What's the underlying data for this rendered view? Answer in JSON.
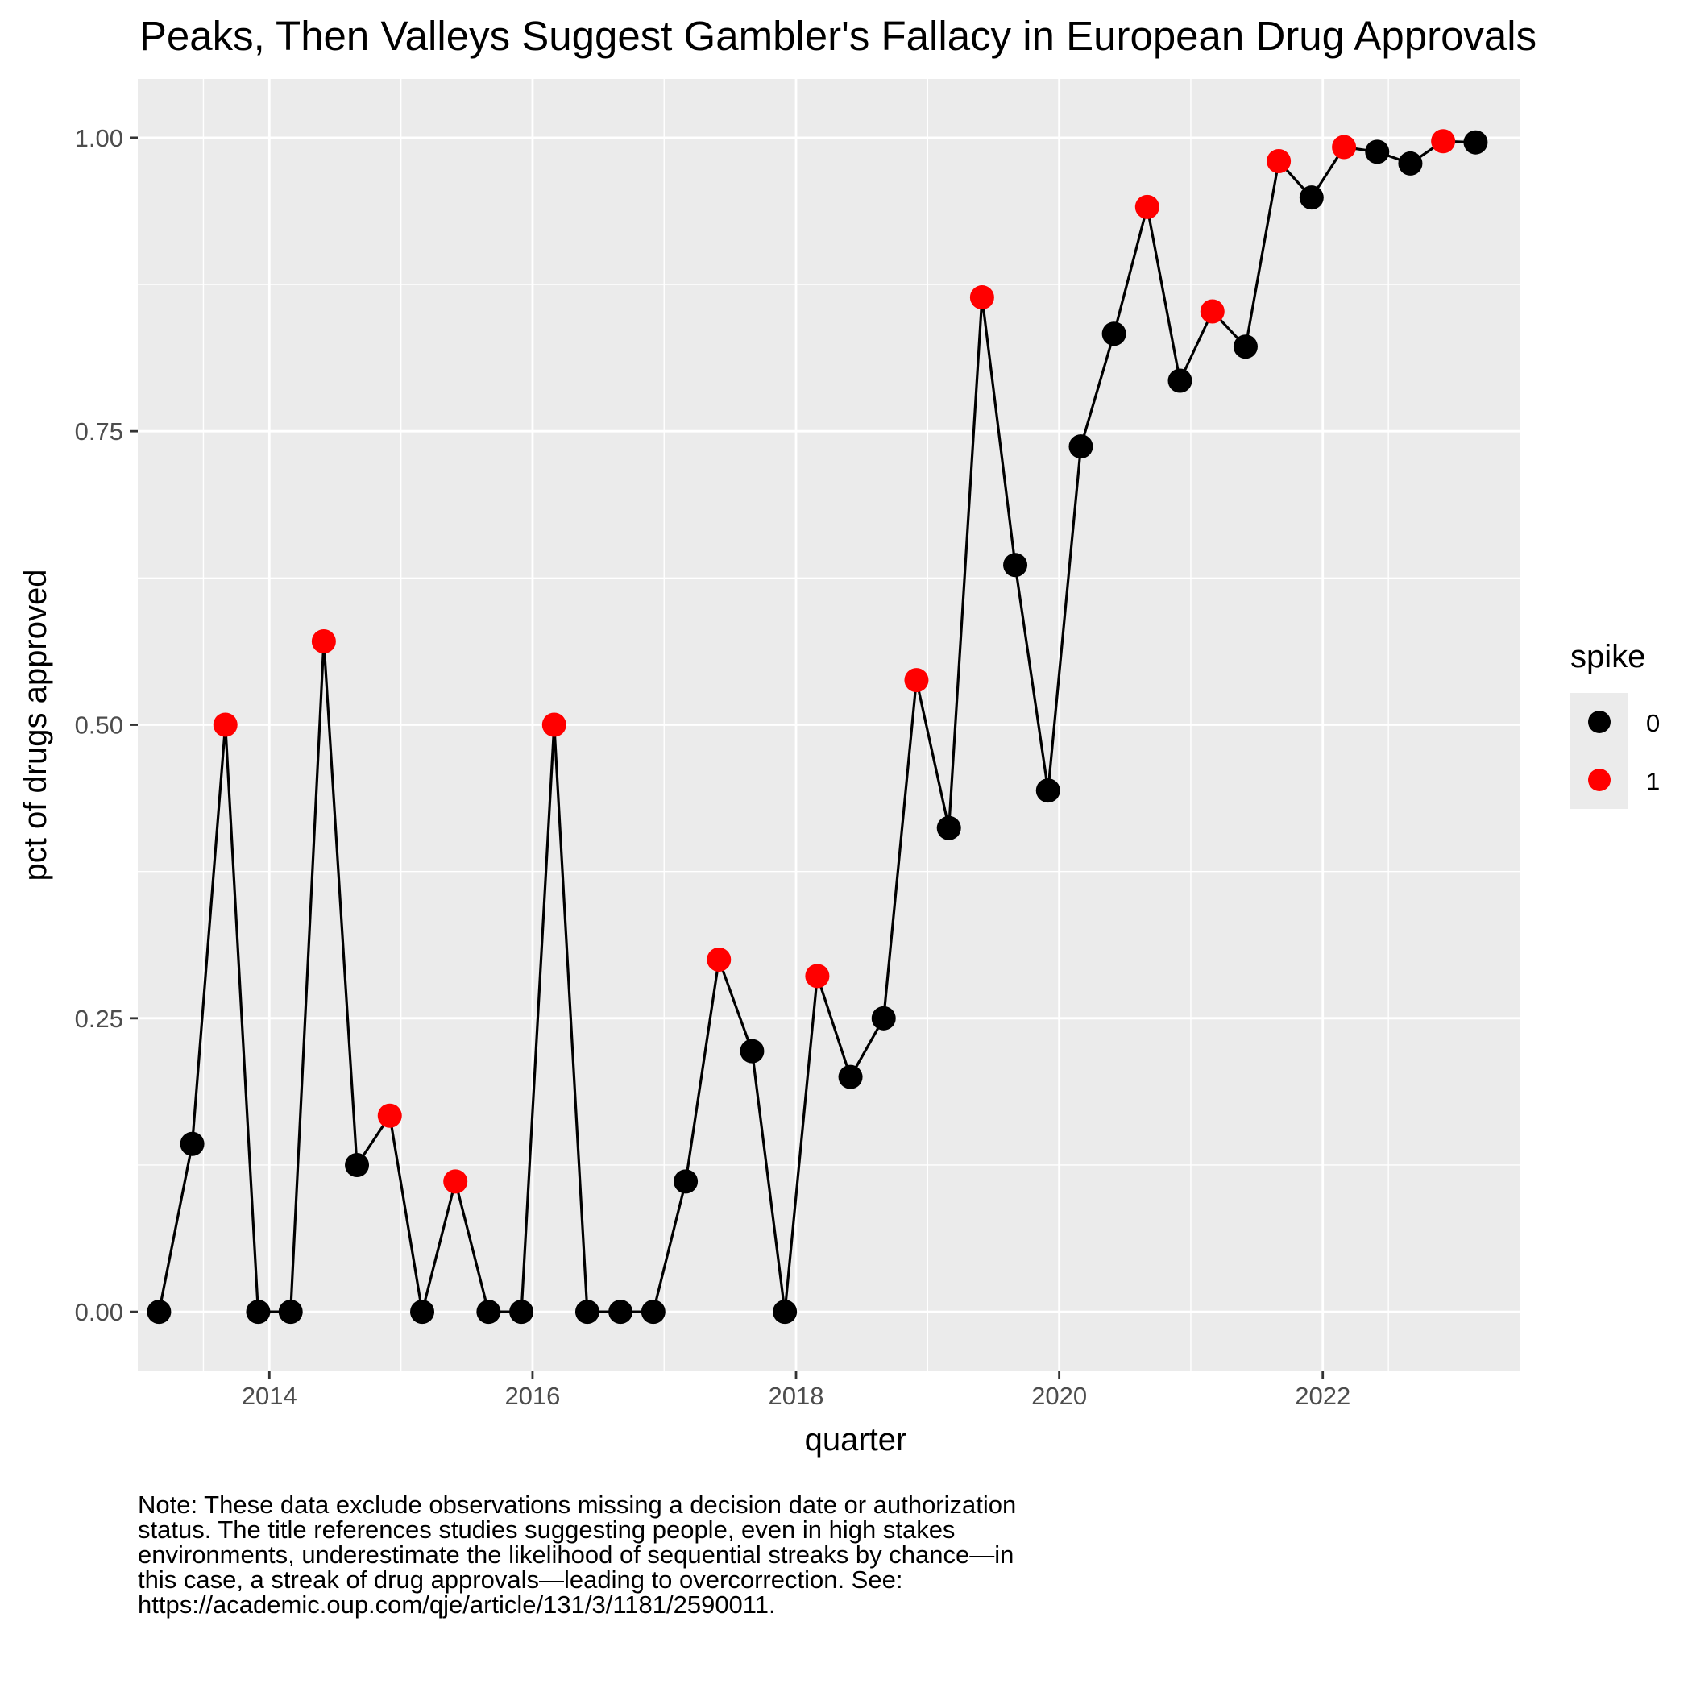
{
  "chart_data": {
    "type": "line",
    "title": "Peaks, Then Valleys Suggest Gambler's Fallacy in European Drug Approvals",
    "xlabel": "quarter",
    "ylabel": "pct of drugs approved",
    "xlim": [
      "2013-01-01",
      "2023-07-01"
    ],
    "ylim": [
      -0.05,
      1.05
    ],
    "x_ticks": [
      "2014",
      "2016",
      "2018",
      "2020",
      "2022"
    ],
    "y_ticks": [
      "0.00",
      "0.25",
      "0.50",
      "0.75",
      "1.00"
    ],
    "grid": true,
    "legend": {
      "title": "spike",
      "position": "right",
      "entries": [
        {
          "label": "0",
          "color": "#000000"
        },
        {
          "label": "1",
          "color": "#FF0000"
        }
      ]
    },
    "line_color": "#000000",
    "points": [
      {
        "x": "2013-03-01",
        "y": 0.0,
        "spike": 0
      },
      {
        "x": "2013-06-01",
        "y": 0.143,
        "spike": 0
      },
      {
        "x": "2013-09-01",
        "y": 0.5,
        "spike": 1
      },
      {
        "x": "2013-12-01",
        "y": 0.0,
        "spike": 0
      },
      {
        "x": "2014-03-01",
        "y": 0.0,
        "spike": 0
      },
      {
        "x": "2014-06-01",
        "y": 0.571,
        "spike": 1
      },
      {
        "x": "2014-09-01",
        "y": 0.125,
        "spike": 0
      },
      {
        "x": "2014-12-01",
        "y": 0.167,
        "spike": 1
      },
      {
        "x": "2015-03-01",
        "y": 0.0,
        "spike": 0
      },
      {
        "x": "2015-06-01",
        "y": 0.111,
        "spike": 1
      },
      {
        "x": "2015-09-01",
        "y": 0.0,
        "spike": 0
      },
      {
        "x": "2015-12-01",
        "y": 0.0,
        "spike": 0
      },
      {
        "x": "2016-03-01",
        "y": 0.5,
        "spike": 1
      },
      {
        "x": "2016-06-01",
        "y": 0.0,
        "spike": 0
      },
      {
        "x": "2016-09-01",
        "y": 0.0,
        "spike": 0
      },
      {
        "x": "2016-12-01",
        "y": 0.0,
        "spike": 0
      },
      {
        "x": "2017-03-01",
        "y": 0.111,
        "spike": 0
      },
      {
        "x": "2017-06-01",
        "y": 0.3,
        "spike": 1
      },
      {
        "x": "2017-09-01",
        "y": 0.222,
        "spike": 0
      },
      {
        "x": "2017-12-01",
        "y": 0.0,
        "spike": 0
      },
      {
        "x": "2018-03-01",
        "y": 0.286,
        "spike": 1
      },
      {
        "x": "2018-06-01",
        "y": 0.2,
        "spike": 0
      },
      {
        "x": "2018-09-01",
        "y": 0.25,
        "spike": 0
      },
      {
        "x": "2018-12-01",
        "y": 0.538,
        "spike": 1
      },
      {
        "x": "2019-03-01",
        "y": 0.412,
        "spike": 0
      },
      {
        "x": "2019-06-01",
        "y": 0.864,
        "spike": 1
      },
      {
        "x": "2019-09-01",
        "y": 0.636,
        "spike": 0
      },
      {
        "x": "2019-12-01",
        "y": 0.444,
        "spike": 0
      },
      {
        "x": "2020-03-01",
        "y": 0.737,
        "spike": 0
      },
      {
        "x": "2020-06-01",
        "y": 0.833,
        "spike": 0
      },
      {
        "x": "2020-09-01",
        "y": 0.941,
        "spike": 1
      },
      {
        "x": "2020-12-01",
        "y": 0.793,
        "spike": 0
      },
      {
        "x": "2021-03-01",
        "y": 0.852,
        "spike": 1
      },
      {
        "x": "2021-06-01",
        "y": 0.822,
        "spike": 0
      },
      {
        "x": "2021-09-01",
        "y": 0.98,
        "spike": 1
      },
      {
        "x": "2021-12-01",
        "y": 0.949,
        "spike": 0
      },
      {
        "x": "2022-03-01",
        "y": 0.992,
        "spike": 1
      },
      {
        "x": "2022-06-01",
        "y": 0.988,
        "spike": 0
      },
      {
        "x": "2022-09-01",
        "y": 0.978,
        "spike": 0
      },
      {
        "x": "2022-12-01",
        "y": 0.997,
        "spike": 1
      },
      {
        "x": "2023-03-01",
        "y": 0.996,
        "spike": 0
      }
    ]
  },
  "note": "Note: These data exclude observations missing a decision date or authorization\nstatus. The title references studies suggesting people, even in high stakes\nenvironments, underestimate the likelihood of sequential streaks by chance—in\nthis case, a streak of drug approvals—leading to overcorrection. See:\nhttps://academic.oup.com/qje/article/131/3/1181/2590011."
}
